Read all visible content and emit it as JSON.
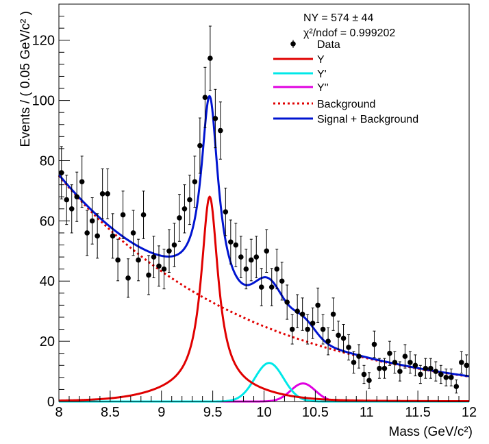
{
  "chart_data": {
    "type": "scatter",
    "xlabel": "Mass (GeV/c²)",
    "ylabel": "Events / ( 0.05 GeV/c² )",
    "xlim": [
      8,
      12
    ],
    "ylim": [
      0,
      132
    ],
    "x_ticks": [
      8,
      8.5,
      9,
      9.5,
      10,
      10.5,
      11,
      11.5,
      12
    ],
    "x_tick_labels": [
      "8",
      "8.5",
      "9",
      "9.5",
      "10",
      "10.5",
      "11",
      "11.5",
      "12"
    ],
    "y_ticks": [
      0,
      20,
      40,
      60,
      80,
      100,
      120
    ],
    "y_tick_labels": [
      "0",
      "20",
      "40",
      "60",
      "80",
      "100",
      "120"
    ],
    "grid": false,
    "legend_position": "top-right",
    "stats": {
      "yield": "NΥ = 574 ± 44",
      "chi2": "χ²/ndof = 0.999202"
    },
    "legend": [
      {
        "label": "Data",
        "style": "marker",
        "color": "#000000"
      },
      {
        "label": "Υ",
        "style": "solid",
        "color": "#e00000"
      },
      {
        "label": "Υ'",
        "style": "solid",
        "color": "#00e8e8"
      },
      {
        "label": "Υ''",
        "style": "solid",
        "color": "#e000e0"
      },
      {
        "label": "Background",
        "style": "dotted",
        "color": "#e00000"
      },
      {
        "label": "Signal + Background",
        "style": "solid",
        "color": "#0014d0"
      }
    ],
    "data": {
      "x": [
        8.025,
        8.075,
        8.125,
        8.175,
        8.225,
        8.275,
        8.325,
        8.375,
        8.425,
        8.475,
        8.525,
        8.575,
        8.625,
        8.675,
        8.725,
        8.775,
        8.825,
        8.875,
        8.925,
        8.975,
        9.025,
        9.075,
        9.125,
        9.175,
        9.225,
        9.275,
        9.325,
        9.375,
        9.425,
        9.475,
        9.525,
        9.575,
        9.625,
        9.675,
        9.725,
        9.775,
        9.825,
        9.875,
        9.925,
        9.975,
        10.025,
        10.075,
        10.125,
        10.175,
        10.225,
        10.275,
        10.325,
        10.375,
        10.425,
        10.475,
        10.525,
        10.575,
        10.625,
        10.675,
        10.725,
        10.775,
        10.825,
        10.875,
        10.925,
        10.975,
        11.025,
        11.075,
        11.125,
        11.175,
        11.225,
        11.275,
        11.325,
        11.375,
        11.425,
        11.475,
        11.525,
        11.575,
        11.625,
        11.675,
        11.725,
        11.775,
        11.825,
        11.875,
        11.925,
        11.975
      ],
      "y": [
        76,
        67,
        64,
        68,
        73,
        56,
        60,
        55,
        69,
        69,
        55,
        47,
        62,
        41,
        56,
        47,
        62,
        42,
        48,
        45,
        44,
        50,
        52,
        61,
        64,
        67,
        73,
        85,
        101,
        114,
        94,
        90,
        63,
        53,
        52,
        48,
        44,
        47,
        48,
        38,
        50,
        38,
        44,
        40,
        33,
        24,
        30,
        29,
        24,
        26,
        32,
        24,
        20,
        29,
        22,
        21,
        18,
        13,
        15,
        9,
        7,
        19,
        11,
        11,
        16,
        13,
        10,
        15,
        13,
        12,
        9,
        11,
        11,
        10,
        9,
        8,
        8,
        5,
        13,
        12
      ],
      "yerr": [
        8.7,
        8.2,
        8.0,
        8.2,
        8.5,
        7.5,
        7.7,
        7.4,
        8.3,
        8.3,
        7.4,
        6.9,
        7.9,
        6.4,
        7.5,
        6.9,
        7.9,
        6.5,
        6.9,
        6.7,
        6.6,
        7.1,
        7.2,
        7.8,
        8.0,
        8.2,
        8.5,
        9.2,
        10.0,
        10.7,
        9.7,
        9.5,
        7.9,
        7.3,
        7.2,
        6.9,
        6.6,
        6.9,
        6.9,
        6.2,
        7.1,
        6.2,
        6.6,
        6.3,
        5.7,
        4.9,
        5.5,
        5.4,
        4.9,
        5.1,
        5.7,
        4.9,
        4.5,
        5.4,
        4.7,
        4.6,
        4.2,
        3.6,
        3.9,
        3.0,
        2.6,
        4.4,
        3.3,
        3.3,
        4.0,
        3.6,
        3.2,
        3.9,
        3.6,
        3.5,
        3.0,
        3.3,
        3.3,
        3.2,
        3.0,
        2.8,
        2.8,
        2.2,
        3.6,
        3.5
      ]
    },
    "fit_model": {
      "background": {
        "type": "exponential",
        "value_at_8": 75,
        "slope_per_gev": -0.55
      },
      "upsilon_1s": {
        "mean": 9.47,
        "peak": 68,
        "width": 0.1,
        "tail_ratio": 0.06,
        "tail_sigma": 0.45
      },
      "upsilon_2s": {
        "mean": 10.05,
        "peak": 12.8,
        "sigma": 0.14
      },
      "upsilon_3s": {
        "mean": 10.38,
        "peak": 6.0,
        "sigma": 0.12
      }
    }
  }
}
